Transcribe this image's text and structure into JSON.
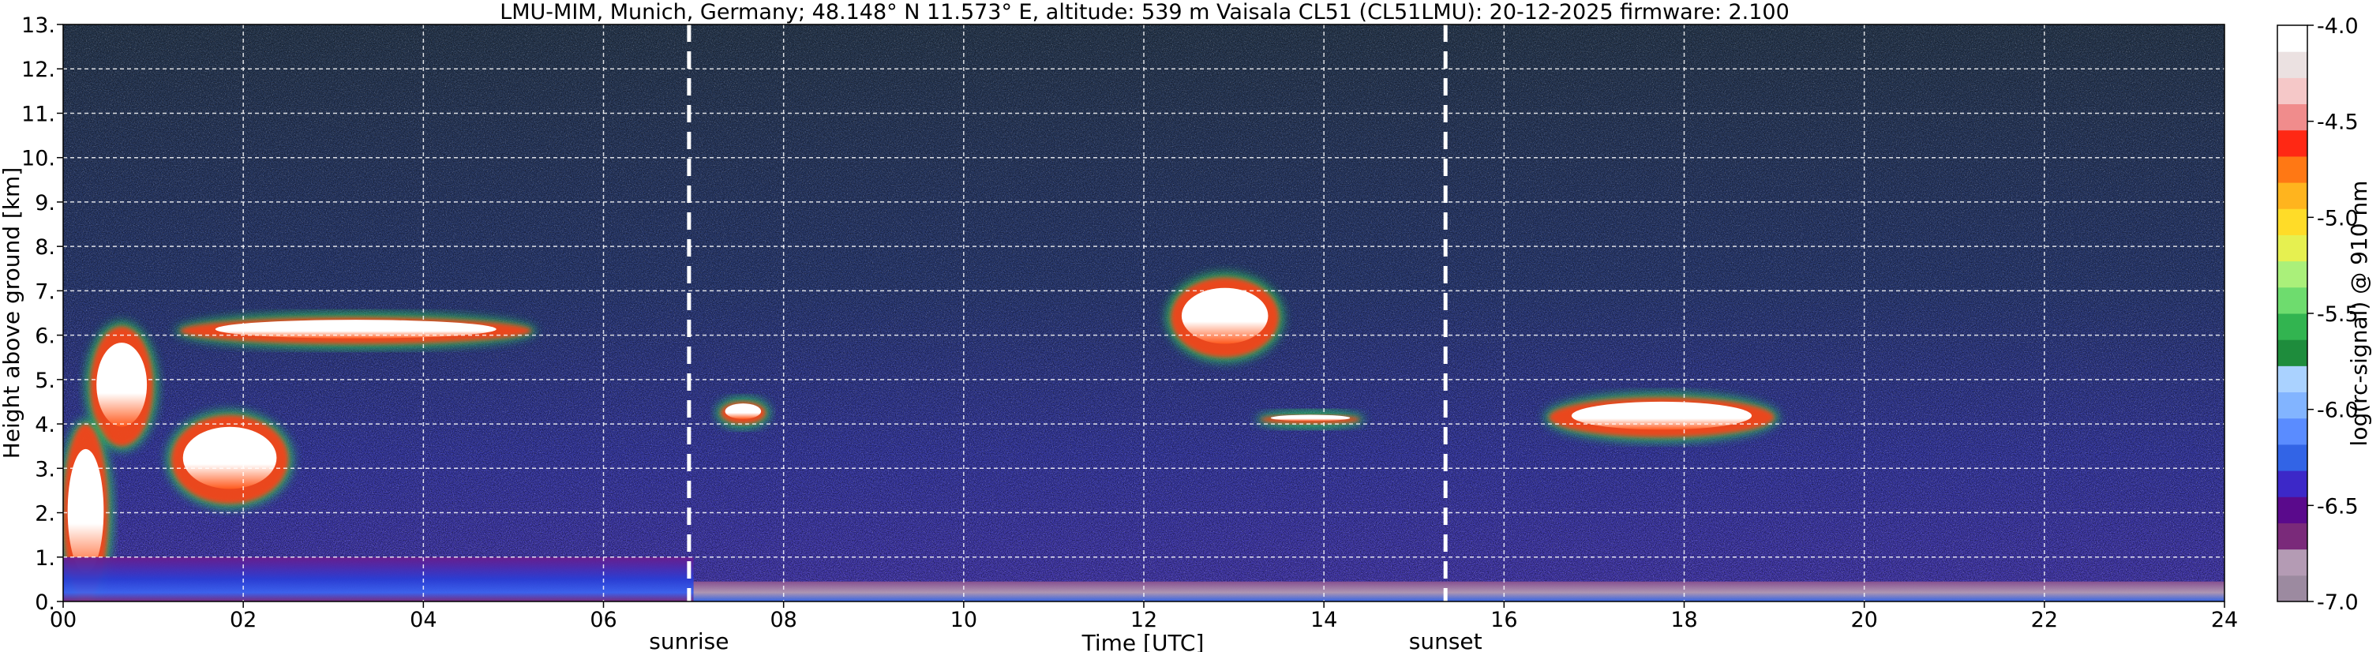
{
  "chart_data": {
    "type": "heatmap",
    "title": "LMU-MIM, Munich, Germany; 48.148° N 11.573° E, altitude: 539 m    Vaisala CL51 (CL51LMU): 20-12-2025    firmware: 2.100",
    "xlabel": "Time [UTC]",
    "ylabel": "Height above ground [km]",
    "xlim": [
      0,
      24
    ],
    "ylim": [
      0,
      13
    ],
    "x_ticks": [
      0,
      2,
      4,
      6,
      8,
      10,
      12,
      14,
      16,
      18,
      20,
      22,
      24
    ],
    "x_tick_labels": [
      "00",
      "02",
      "04",
      "06",
      "08",
      "10",
      "12",
      "14",
      "16",
      "18",
      "20",
      "22",
      "24"
    ],
    "y_ticks": [
      0,
      1,
      2,
      3,
      4,
      5,
      6,
      7,
      8,
      9,
      10,
      11,
      12,
      13
    ],
    "y_tick_labels": [
      "0.",
      "1.",
      "2.",
      "3.",
      "4.",
      "5.",
      "6.",
      "7.",
      "8.",
      "9.",
      "10.",
      "11.",
      "12.",
      "13."
    ],
    "grid": true,
    "events": [
      {
        "label": "sunrise",
        "time": 6.95
      },
      {
        "label": "sunset",
        "time": 15.35
      }
    ],
    "colorbar": {
      "label": "log(rc-signal) @ 910 nm",
      "range": [
        -7.0,
        -4.0
      ],
      "ticks": [
        -7.0,
        -6.5,
        -6.0,
        -5.5,
        -5.0,
        -4.5,
        -4.0
      ],
      "tick_labels": [
        "-7.0",
        "-6.5",
        "-6.0",
        "-5.5",
        "-5.0",
        "-4.5",
        "-4.0"
      ],
      "colors": [
        "#9c8aa0",
        "#b49bb4",
        "#7a2a7a",
        "#5a0a8c",
        "#3c28c8",
        "#3264e6",
        "#5a8cff",
        "#82b4ff",
        "#aad2ff",
        "#1e8c3c",
        "#32b450",
        "#6edc6e",
        "#aaf07a",
        "#e6f050",
        "#ffdc28",
        "#ffb41e",
        "#ff7814",
        "#ff2814",
        "#f08c8c",
        "#f5c8c8",
        "#ebe1e1",
        "#ffffff"
      ]
    },
    "features": [
      {
        "kind": "cloud",
        "t0": 1.3,
        "t1": 5.2,
        "h0": 5.8,
        "h1": 6.4
      },
      {
        "kind": "cloud",
        "t0": 0.3,
        "t1": 1.0,
        "h0": 3.5,
        "h1": 6.2
      },
      {
        "kind": "cloud",
        "t0": 1.2,
        "t1": 2.5,
        "h0": 2.2,
        "h1": 4.2
      },
      {
        "kind": "cloud",
        "t0": 0.0,
        "t1": 0.5,
        "h0": 0.0,
        "h1": 4.0
      },
      {
        "kind": "cloud",
        "t0": 7.3,
        "t1": 7.8,
        "h0": 4.0,
        "h1": 4.5
      },
      {
        "kind": "cloud",
        "t0": 12.3,
        "t1": 13.5,
        "h0": 5.5,
        "h1": 7.3
      },
      {
        "kind": "cloud",
        "t0": 13.3,
        "t1": 14.4,
        "h0": 4.0,
        "h1": 4.2
      },
      {
        "kind": "cloud",
        "t0": 16.5,
        "t1": 19.0,
        "h0": 3.7,
        "h1": 4.6
      },
      {
        "kind": "boundary-layer",
        "t0": 0.0,
        "t1": 7.0,
        "h0": 0.0,
        "h1": 1.0
      },
      {
        "kind": "boundary-layer",
        "t0": 7.0,
        "t1": 24.0,
        "h0": 0.0,
        "h1": 0.45
      }
    ]
  }
}
